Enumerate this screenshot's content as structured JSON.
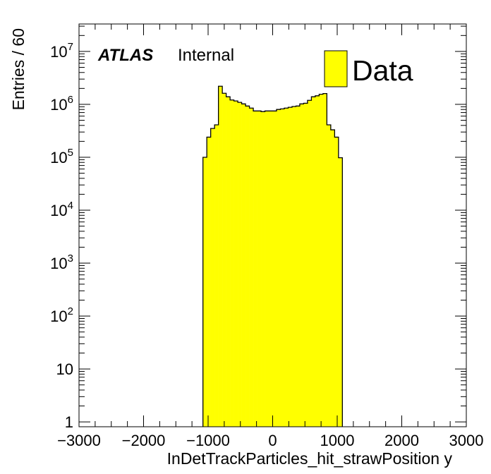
{
  "chart_data": {
    "type": "bar",
    "subtype": "histogram",
    "xlabel": "InDetTrackParticles_hit_strawPosition y",
    "ylabel": "Entries / 60",
    "xlim": [
      -3000,
      3000
    ],
    "ylim": [
      0.81,
      33000000
    ],
    "yscale": "log",
    "bin_width": 60,
    "x_start": -1080,
    "values": [
      100000,
      240000,
      350000,
      410000,
      2200000,
      1620000,
      1390000,
      1210000,
      1160000,
      1090000,
      1020000,
      930000,
      850000,
      750000,
      750000,
      730000,
      750000,
      750000,
      750000,
      800000,
      820000,
      850000,
      880000,
      910000,
      930000,
      1020000,
      1050000,
      1190000,
      1390000,
      1450000,
      1550000,
      1600000,
      410000,
      330000,
      240000,
      98000
    ],
    "x_ticks": [
      "-3000",
      "-2000",
      "-1000",
      "0",
      "1000",
      "2000",
      "3000"
    ],
    "x_tick_values": [
      -3000,
      -2000,
      -1000,
      0,
      1000,
      2000,
      3000
    ],
    "y_ticks": [
      {
        "value": 1,
        "base": "1",
        "exp": ""
      },
      {
        "value": 10,
        "base": "10",
        "exp": ""
      },
      {
        "value": 100,
        "base": "10",
        "exp": "2"
      },
      {
        "value": 1000,
        "base": "10",
        "exp": "3"
      },
      {
        "value": 10000,
        "base": "10",
        "exp": "4"
      },
      {
        "value": 100000,
        "base": "10",
        "exp": "5"
      },
      {
        "value": 1000000,
        "base": "10",
        "exp": "6"
      },
      {
        "value": 10000000,
        "base": "10",
        "exp": "7"
      }
    ],
    "legend": [
      {
        "label": "Data",
        "color": "#ffff00"
      }
    ],
    "legend_position": "top-right",
    "annotation": {
      "experiment": "ATLAS",
      "status": "Internal"
    },
    "fill_color": "#ffff00",
    "line_color": "#000000"
  }
}
